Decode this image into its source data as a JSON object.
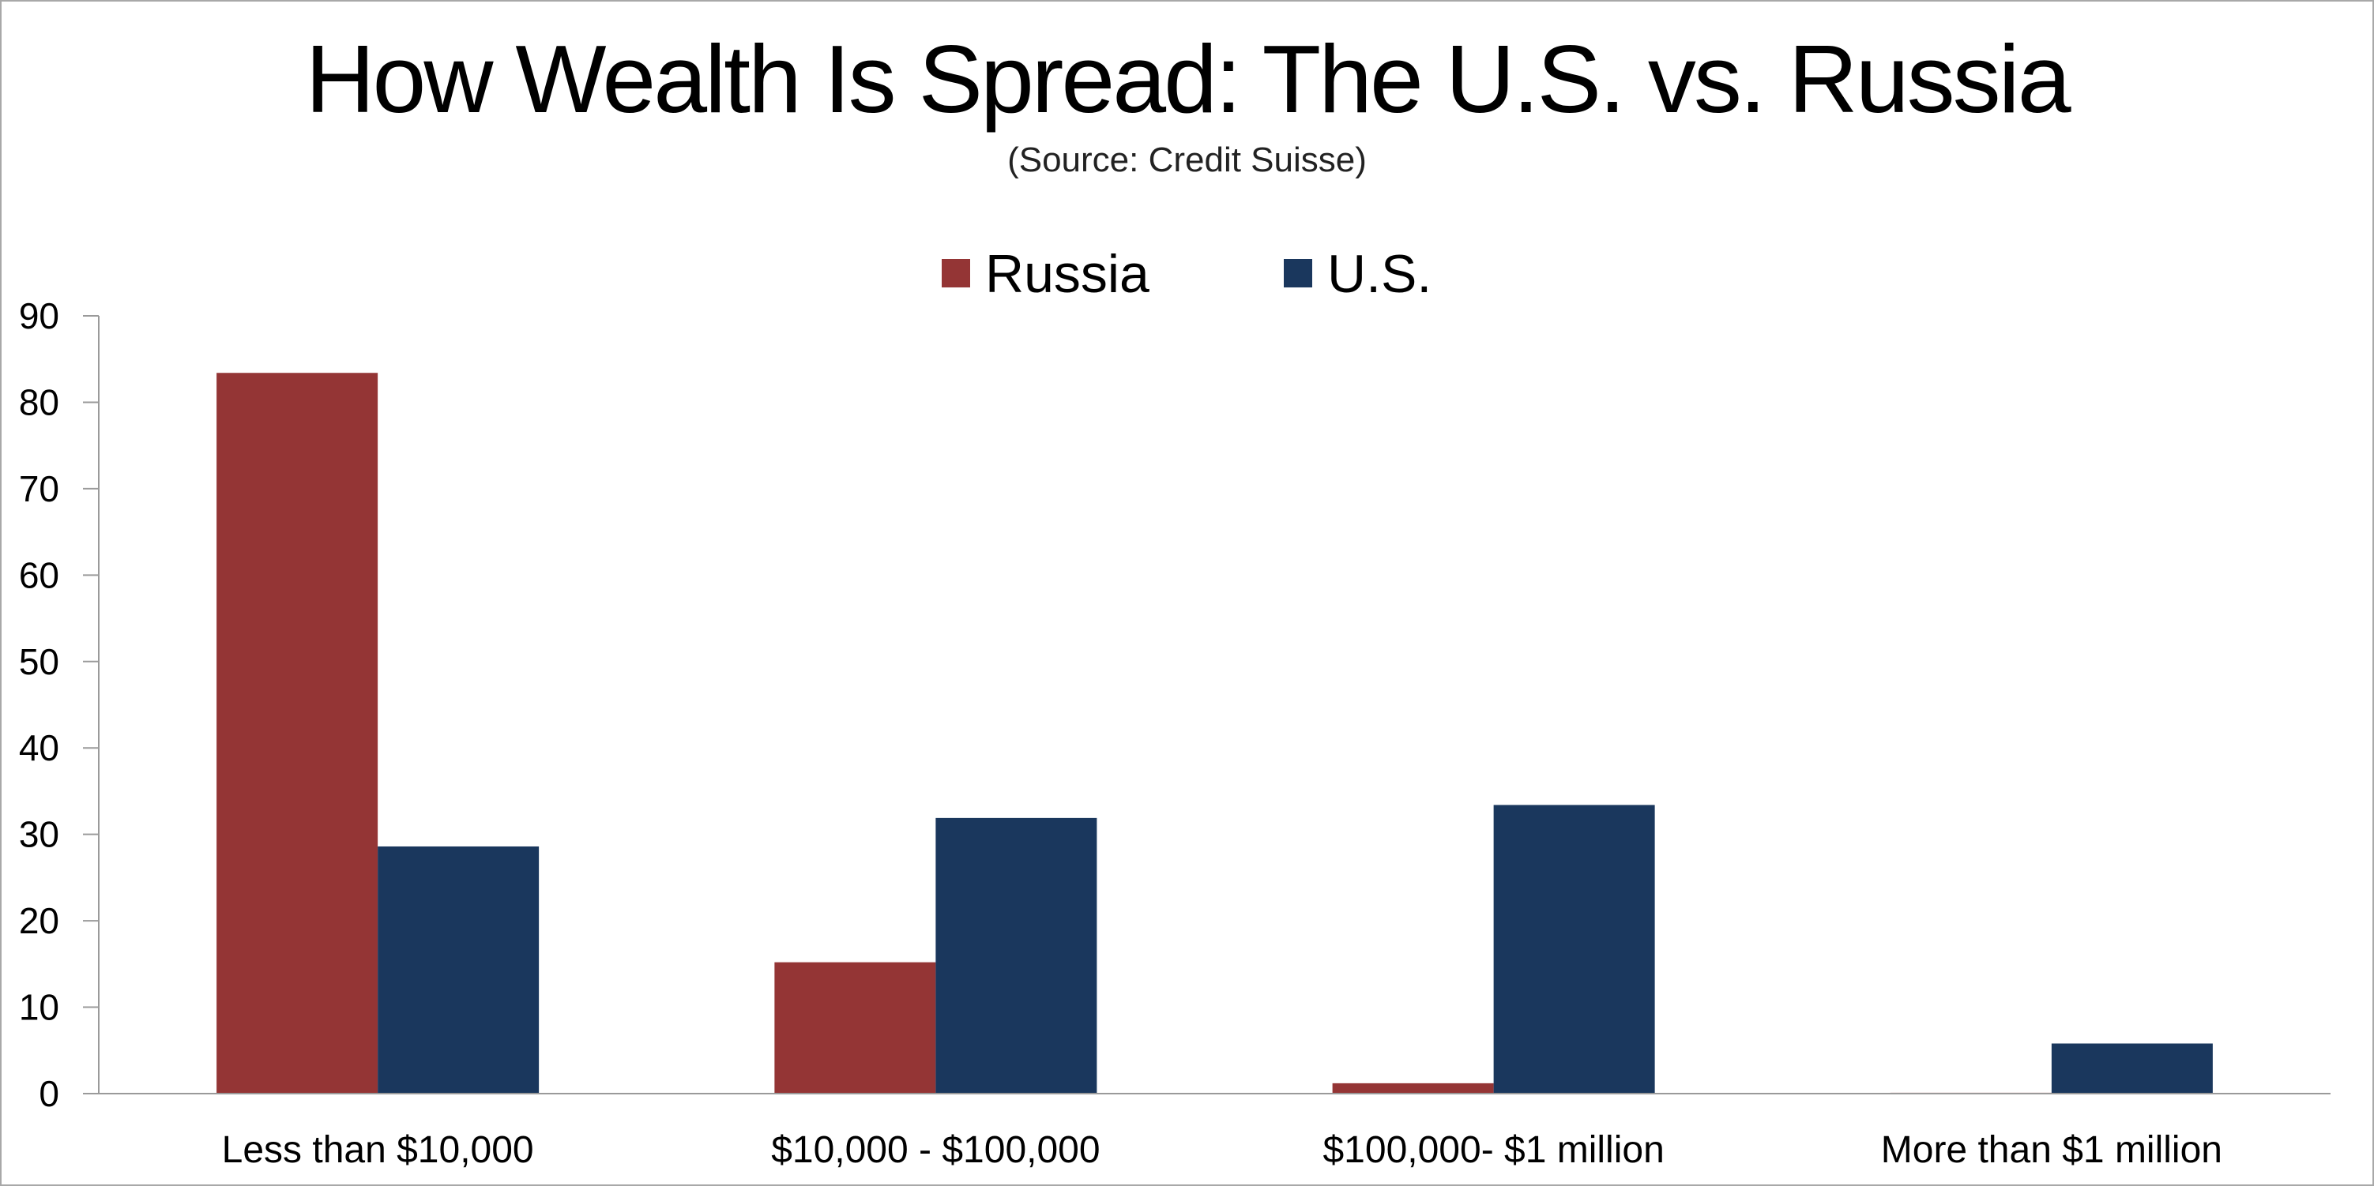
{
  "chart_data": {
    "type": "bar",
    "title": "How Wealth Is Spread: The U.S. vs. Russia",
    "subtitle": "(Source: Credit Suisse)",
    "xlabel": "",
    "ylabel": "",
    "ylim": [
      0,
      90
    ],
    "yticks": [
      0,
      10,
      20,
      30,
      40,
      50,
      60,
      70,
      80,
      90
    ],
    "categories": [
      "Less than $10,000",
      "$10,000 - $100,000",
      "$100,000- $1 million",
      "More than $1 million"
    ],
    "series": [
      {
        "name": "Russia",
        "color": "#943535",
        "values": [
          83.4,
          15.2,
          1.2,
          0.1
        ]
      },
      {
        "name": "U.S.",
        "color": "#1a375d",
        "values": [
          28.6,
          31.9,
          33.4,
          5.8
        ]
      }
    ],
    "legend": "top-center",
    "grid": false
  }
}
